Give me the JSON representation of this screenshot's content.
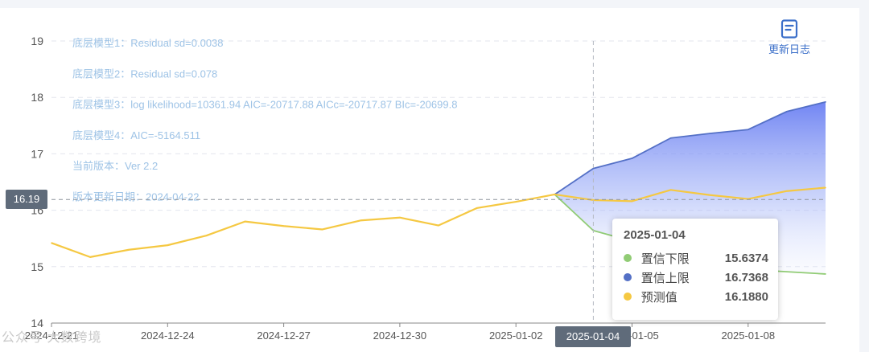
{
  "chart_data": {
    "type": "area",
    "y_range": [
      14,
      19
    ],
    "y_ticks": [
      "14",
      "15",
      "16",
      "17",
      "18",
      "19"
    ],
    "x_tick_labels": [
      {
        "x": 0,
        "label": "2024-12-21"
      },
      {
        "x": 3,
        "label": "2024-12-24"
      },
      {
        "x": 6,
        "label": "2024-12-27"
      },
      {
        "x": 9,
        "label": "2024-12-30"
      },
      {
        "x": 12,
        "label": "2025-01-02"
      },
      {
        "x": 15,
        "label": "2025-01-05"
      },
      {
        "x": 18,
        "label": "2025-01-08"
      }
    ],
    "series": [
      {
        "name": "预测值",
        "color": "#f5c842",
        "points": [
          [
            0,
            15.42
          ],
          [
            1,
            15.17
          ],
          [
            2,
            15.3
          ],
          [
            3,
            15.38
          ],
          [
            4,
            15.55
          ],
          [
            5,
            15.8
          ],
          [
            6,
            15.72
          ],
          [
            7,
            15.66
          ],
          [
            8,
            15.82
          ],
          [
            9,
            15.87
          ],
          [
            10,
            15.73
          ],
          [
            11,
            16.04
          ],
          [
            12,
            16.15
          ],
          [
            13,
            16.28
          ],
          [
            14,
            16.18
          ],
          [
            15,
            16.16
          ],
          [
            16,
            16.36
          ],
          [
            17,
            16.27
          ],
          [
            18,
            16.2
          ],
          [
            19,
            16.34
          ],
          [
            20,
            16.4
          ]
        ]
      },
      {
        "name": "置信上限",
        "color": "#5470c6",
        "points": [
          [
            13,
            16.28
          ],
          [
            14,
            16.74
          ],
          [
            15,
            16.92
          ],
          [
            16,
            17.28
          ],
          [
            17,
            17.36
          ],
          [
            18,
            17.43
          ],
          [
            19,
            17.75
          ],
          [
            20,
            17.92
          ]
        ]
      },
      {
        "name": "置信下限",
        "color": "#91cc75",
        "points": [
          [
            13,
            16.28
          ],
          [
            14,
            15.64
          ],
          [
            15,
            15.45
          ],
          [
            16,
            15.32
          ],
          [
            17,
            15.05
          ],
          [
            18,
            14.95
          ],
          [
            19,
            14.91
          ],
          [
            20,
            14.87
          ]
        ]
      }
    ],
    "crosshair": {
      "x": 14,
      "y": 16.19,
      "y_label": "16.19",
      "x_label": "2025-01-04"
    },
    "notes": [
      "底层模型1：Residual sd=0.0038",
      "底层模型2：Residual sd=0.078",
      "底层模型3：log likelihood=10361.94 AIC=-20717.88 AICc=-20717.87 BIc=-20699.8",
      "底层模型4：AIC=-5164.511",
      "当前版本：Ver 2.2",
      "版本更新日期：2024-04-22"
    ]
  },
  "tooltip": {
    "title": "2025-01-04",
    "rows": [
      {
        "name": "置信下限",
        "value": "15.6374",
        "color": "#91cc75"
      },
      {
        "name": "置信上限",
        "value": "16.7368",
        "color": "#5470c6"
      },
      {
        "name": "预测值",
        "value": "16.1880",
        "color": "#f5c842"
      }
    ]
  },
  "toolbar": {
    "changelog_label": "更新日志",
    "changelog_icon": "document-icon"
  },
  "watermark": "公众号 大数跨境"
}
